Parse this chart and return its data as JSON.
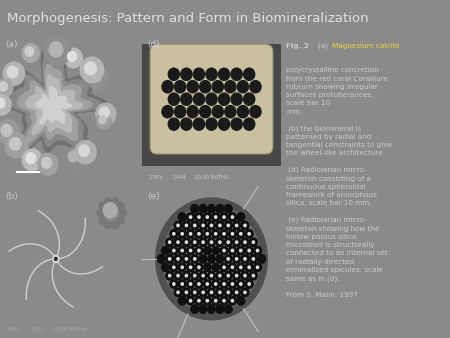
{
  "title": "Morphogenesis: Pattern and Form in Biomineralization",
  "title_fontsize": 9.5,
  "title_color": "#e0e0e0",
  "bg_color": "#8a8a8a",
  "panel_a_bg": "#404040",
  "panel_b_bg": "#1a1a1a",
  "panel_d_bg": "#383838",
  "panel_e_bg": "#101010",
  "fig_width": 4.5,
  "fig_height": 3.38,
  "caption_fontsize": 5.2,
  "caption_color": "#cccccc",
  "highlight_color": "#e8d840",
  "label_color": "#cccccc",
  "label_fontsize": 6.5,
  "caption_line1_bold": "Fig. 2 ",
  "caption_line1_highlight": "(a) Magnesium calcite",
  "caption_body": "polycrystalline concretion\nfrom the red coral Corallium\nrubrum showing irregular\nsurfaces protuberances,\nscale bar 10\nmm.\n\n (b) the biomineral is\npatterned by radial and\ntangential constraints to give\nthe wheel-like architecture.\n\n (d) Radiolarian micro-\nskeleton consisting of a\ncontinuous spheroidal\nframework of amorphous\nsilica, scale bar 10 mm.\n\n (e) Radiolarian micro-\nskeleton showing how the\nhollow porous silica\nmicroshell is structurally\nconnected to an internal set\nof radially-directed\nmineralized spicules, scale\nsame as in (d).\n\nFrom S. Mann, 1997",
  "sem_text_d": "15KV      1044     10.00 BATHU",
  "sem_text_b": "35KV      5573     10.00 BATHU"
}
